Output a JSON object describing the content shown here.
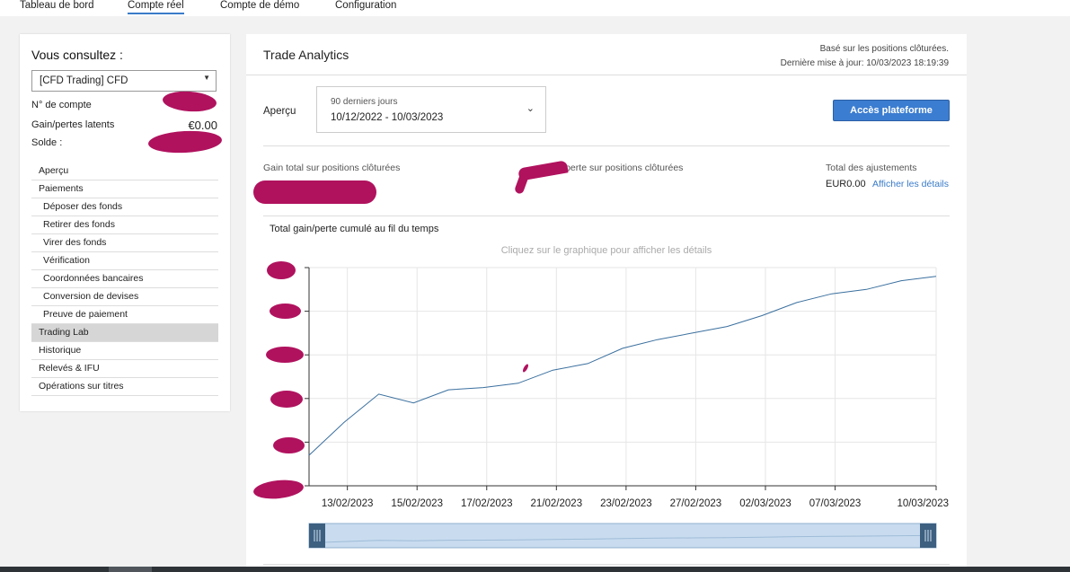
{
  "nav": {
    "tabs": [
      {
        "label": "Tableau de bord",
        "active": false
      },
      {
        "label": "Compte réel",
        "active": true
      },
      {
        "label": "Compte de démo",
        "active": false
      },
      {
        "label": "Configuration",
        "active": false
      }
    ]
  },
  "sidebar": {
    "heading": "Vous consultez :",
    "account_select": "[CFD Trading] CFD",
    "account_number_label": "N° de compte",
    "unrealized_label": "Gain/pertes latents",
    "unrealized_value": "€0.00",
    "balance_label": "Solde :",
    "menu": [
      {
        "label": "Aperçu",
        "sub": false,
        "selected": false
      },
      {
        "label": "Paiements",
        "sub": false,
        "selected": false
      },
      {
        "label": "Déposer des fonds",
        "sub": true,
        "selected": false
      },
      {
        "label": "Retirer des fonds",
        "sub": true,
        "selected": false
      },
      {
        "label": "Virer des fonds",
        "sub": true,
        "selected": false
      },
      {
        "label": "Vérification",
        "sub": true,
        "selected": false
      },
      {
        "label": "Coordonnées bancaires",
        "sub": true,
        "selected": false
      },
      {
        "label": "Conversion de devises",
        "sub": true,
        "selected": false
      },
      {
        "label": "Preuve de paiement",
        "sub": true,
        "selected": false
      },
      {
        "label": "Trading Lab",
        "sub": false,
        "selected": true
      },
      {
        "label": "Historique",
        "sub": false,
        "selected": false
      },
      {
        "label": "Relevés & IFU",
        "sub": false,
        "selected": false
      },
      {
        "label": "Opérations sur titres",
        "sub": false,
        "selected": false
      }
    ]
  },
  "main": {
    "title": "Trade Analytics",
    "meta_line1": "Basé sur les positions clôturées.",
    "meta_line2": "Dernière mise à jour: 10/03/2023 18:19:39",
    "apercu_label": "Aperçu",
    "period_label": "90 derniers jours",
    "period_range": "10/12/2022 - 10/03/2023",
    "platform_button": "Accès plateforme",
    "total_gain_label": "Gain total sur positions clôturées",
    "avg_gain_label": "Gain/perte sur positions clôturées",
    "adjustments_label": "Total des ajustements",
    "adjustments_value": "EUR0.00",
    "details_link": "Afficher les détails",
    "chart_title": "Total gain/perte cumulé au fil du temps",
    "chart_hint": "Cliquez sur le graphique pour afficher les détails"
  },
  "colors": {
    "accent": "#3b7dd0",
    "line": "#3a6f9e",
    "redaction": "#b0125e",
    "navigator_fill": "#c9dcef",
    "navigator_handle": "#3d5f80"
  },
  "chart_data": {
    "type": "line",
    "x_tick_labels": [
      "13/02/2023",
      "15/02/2023",
      "17/02/2023",
      "21/02/2023",
      "23/02/2023",
      "27/02/2023",
      "02/03/2023",
      "07/03/2023",
      "10/03/2023"
    ],
    "y_axis_labels_redacted": true,
    "series": [
      {
        "relative_values": [
          0.14,
          0.29,
          0.42,
          0.38,
          0.44,
          0.45,
          0.47,
          0.53,
          0.56,
          0.63,
          0.67,
          0.7,
          0.73,
          0.78,
          0.84,
          0.88,
          0.9,
          0.94,
          0.96
        ]
      }
    ]
  }
}
